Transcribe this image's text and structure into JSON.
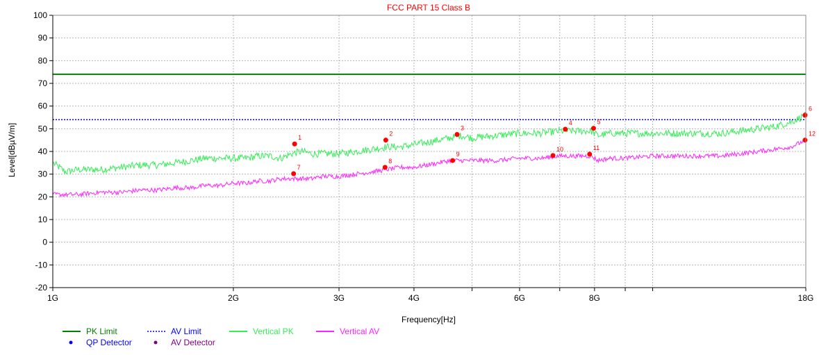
{
  "chart_data": {
    "type": "line",
    "title": "FCC PART 15 Class B",
    "xlabel": "Frequency[Hz]",
    "ylabel": "Level[dBµV/m]",
    "x_scale": "log",
    "xlim_hz": [
      1000000000,
      18000000000
    ],
    "ylim": [
      -20,
      100
    ],
    "grid": true,
    "legend_position": "bottom-left",
    "y_ticks": [
      -20,
      -10,
      0,
      10,
      20,
      30,
      40,
      50,
      60,
      70,
      80,
      90,
      100
    ],
    "x_ticks": [
      {
        "hz": 1000000000,
        "label": "1G"
      },
      {
        "hz": 2000000000,
        "label": "2G"
      },
      {
        "hz": 3000000000,
        "label": "3G"
      },
      {
        "hz": 4000000000,
        "label": "4G"
      },
      {
        "hz": 6000000000,
        "label": "6G"
      },
      {
        "hz": 8000000000,
        "label": "8G"
      },
      {
        "hz": 18000000000,
        "label": "18G"
      }
    ],
    "x_minor_grid_hz": [
      5000000000,
      7000000000,
      9000000000,
      10000000000
    ],
    "limits": [
      {
        "name": "PK Limit",
        "value": 74,
        "color": "#008000",
        "style": "solid"
      },
      {
        "name": "AV Limit",
        "value": 54,
        "color": "#0000ff",
        "style": "dotted"
      }
    ],
    "series": [
      {
        "name": "Vertical PK",
        "color": "#33ee55",
        "x_ghz": [
          1.0,
          1.05,
          1.1,
          1.2,
          1.3,
          1.4,
          1.5,
          1.6,
          1.7,
          1.8,
          1.9,
          2.0,
          2.1,
          2.2,
          2.3,
          2.4,
          2.5,
          2.6,
          2.7,
          2.8,
          3.0,
          3.2,
          3.4,
          3.6,
          3.8,
          4.0,
          4.2,
          4.4,
          4.6,
          4.8,
          5.0,
          5.5,
          6.0,
          6.5,
          7.0,
          7.5,
          7.9,
          8.1,
          8.5,
          9.0,
          10.0,
          11.0,
          12.0,
          13.0,
          14.0,
          15.0,
          16.0,
          17.0,
          18.0
        ],
        "y": [
          35,
          31,
          32,
          32,
          33,
          34,
          34,
          35,
          36,
          37,
          37,
          37,
          37,
          38,
          38,
          37,
          39,
          40,
          39,
          39,
          39,
          40,
          41,
          42,
          42,
          43,
          44,
          45,
          46,
          47,
          46,
          47,
          48,
          48,
          49,
          49,
          49,
          47,
          48,
          48,
          48,
          48,
          48,
          48,
          49,
          50,
          51,
          53,
          56
        ]
      },
      {
        "name": "Vertical AV",
        "color": "#ff22ff",
        "x_ghz": [
          1.0,
          1.1,
          1.2,
          1.3,
          1.4,
          1.5,
          1.6,
          1.7,
          1.8,
          1.9,
          2.0,
          2.1,
          2.2,
          2.3,
          2.4,
          2.5,
          2.6,
          2.7,
          2.8,
          3.0,
          3.2,
          3.4,
          3.6,
          3.8,
          4.0,
          4.2,
          4.4,
          4.6,
          4.8,
          5.0,
          5.5,
          6.0,
          6.5,
          7.0,
          7.5,
          7.9,
          8.1,
          8.5,
          9.0,
          10.0,
          11.0,
          12.0,
          13.0,
          14.0,
          15.0,
          16.0,
          17.0,
          18.0
        ],
        "y": [
          21,
          21,
          22,
          22,
          23,
          23,
          24,
          24,
          25,
          25,
          26,
          26,
          27,
          27,
          28,
          28,
          28,
          28,
          29,
          29,
          30,
          31,
          32,
          33,
          33,
          34,
          35,
          36,
          36,
          36,
          36,
          37,
          37,
          38,
          38,
          38,
          36,
          37,
          37,
          38,
          38,
          38,
          38,
          39,
          40,
          41,
          42,
          45
        ]
      }
    ],
    "markers": [
      {
        "label": "1",
        "x_ghz": 2.53,
        "y": 43.3,
        "color": "#ff0000"
      },
      {
        "label": "2",
        "x_ghz": 3.59,
        "y": 45.0,
        "color": "#ff0000"
      },
      {
        "label": "3",
        "x_ghz": 4.72,
        "y": 47.5,
        "color": "#ff0000"
      },
      {
        "label": "4",
        "x_ghz": 7.15,
        "y": 49.8,
        "color": "#ff0000"
      },
      {
        "label": "5",
        "x_ghz": 7.97,
        "y": 50.2,
        "color": "#ff0000"
      },
      {
        "label": "6",
        "x_ghz": 17.95,
        "y": 56.0,
        "color": "#ff0000"
      },
      {
        "label": "7",
        "x_ghz": 2.52,
        "y": 30.2,
        "color": "#ff0000"
      },
      {
        "label": "8",
        "x_ghz": 3.58,
        "y": 33.0,
        "color": "#ff0000"
      },
      {
        "label": "9",
        "x_ghz": 4.64,
        "y": 36.0,
        "color": "#ff0000"
      },
      {
        "label": "10",
        "x_ghz": 6.82,
        "y": 38.2,
        "color": "#ff0000"
      },
      {
        "label": "11",
        "x_ghz": 7.85,
        "y": 38.8,
        "color": "#ff0000"
      },
      {
        "label": "12",
        "x_ghz": 17.95,
        "y": 45.0,
        "color": "#ff0000"
      }
    ],
    "legend": [
      {
        "name": "PK Limit",
        "color": "#008000",
        "symbol": "line"
      },
      {
        "name": "AV Limit",
        "color": "#0000ff",
        "symbol": "dotted-line"
      },
      {
        "name": "Vertical PK",
        "color": "#33ee55",
        "symbol": "line"
      },
      {
        "name": "Vertical AV",
        "color": "#ff22ff",
        "symbol": "line"
      },
      {
        "name": "QP Detector",
        "color": "#0000ff",
        "symbol": "dot"
      },
      {
        "name": "AV Detector",
        "color": "#800080",
        "symbol": "dot"
      }
    ]
  }
}
